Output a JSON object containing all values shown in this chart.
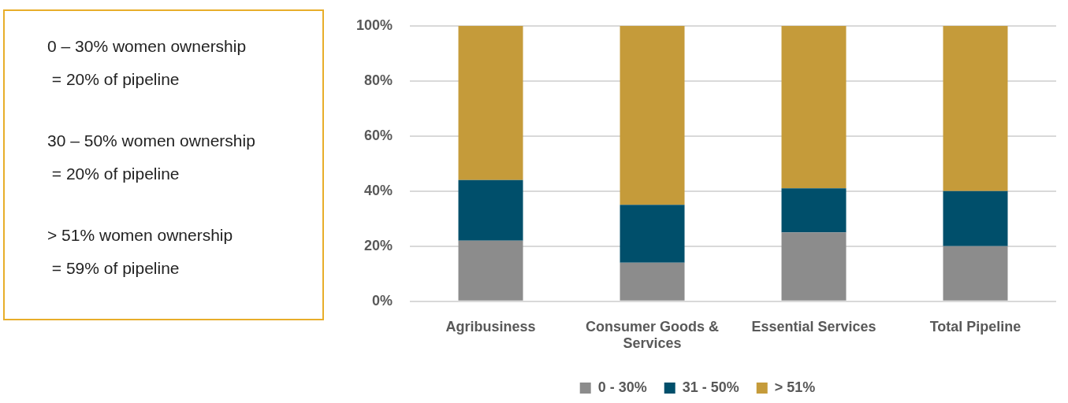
{
  "chart_data": {
    "type": "bar",
    "stacked": true,
    "categories": [
      "Agribusiness",
      "Consumer Goods & Services",
      "Essential Services",
      "Total Pipeline"
    ],
    "series": [
      {
        "name": "0 - 30%",
        "color": "#8c8c8c",
        "values": [
          22,
          14,
          25,
          20
        ]
      },
      {
        "name": "31 - 50%",
        "color": "#004f6b",
        "values": [
          22,
          21,
          16,
          20
        ]
      },
      {
        "name": "> 51%",
        "color": "#c59b3a",
        "values": [
          56,
          65,
          59,
          60
        ]
      }
    ],
    "ylim": [
      0,
      100
    ],
    "yticks": [
      {
        "value": 0,
        "label": "0%"
      },
      {
        "value": 20,
        "label": "20%"
      },
      {
        "value": 40,
        "label": "40%"
      },
      {
        "value": 60,
        "label": "60%"
      },
      {
        "value": 80,
        "label": "80%"
      },
      {
        "value": 100,
        "label": "100%"
      }
    ],
    "grid": "y",
    "legend": "bottom",
    "annotations": [
      "0 – 30% women ownership",
      " = 20% of pipeline",
      "30 – 50% women ownership",
      " = 20% of pipeline",
      "> 51% women ownership",
      " = 59% of pipeline"
    ]
  }
}
